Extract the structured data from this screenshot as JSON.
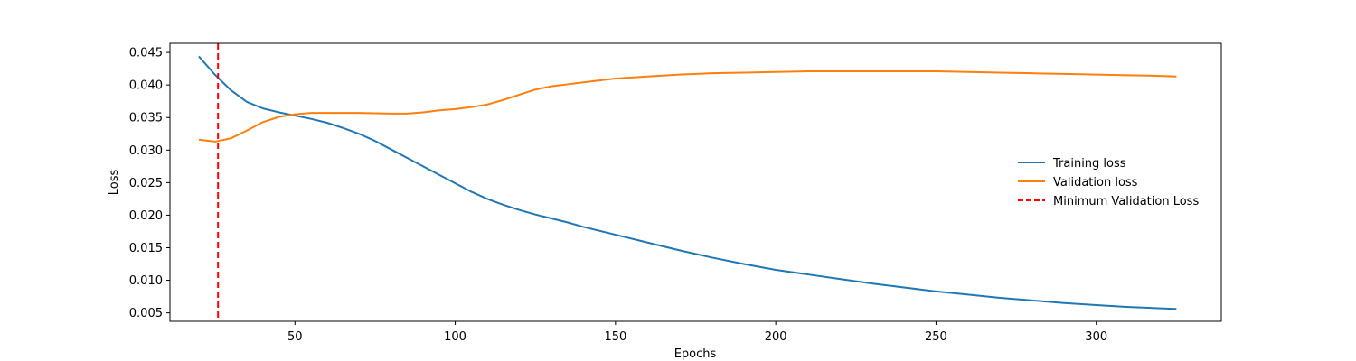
{
  "chart_data": {
    "type": "line",
    "title": "",
    "xlabel": "Epochs",
    "ylabel": "Loss",
    "xlim": [
      11,
      339
    ],
    "ylim": [
      0.0037,
      0.0464
    ],
    "xticks": [
      50,
      100,
      150,
      200,
      250,
      300
    ],
    "yticks": [
      0.005,
      0.01,
      0.015,
      0.02,
      0.025,
      0.03,
      0.035,
      0.04,
      0.045
    ],
    "ytick_labels": [
      "0.005",
      "0.010",
      "0.015",
      "0.020",
      "0.025",
      "0.030",
      "0.035",
      "0.040",
      "0.045"
    ],
    "grid": false,
    "legend": "center-right",
    "series": [
      {
        "name": "Training loss",
        "color": "#1f77b4",
        "x": [
          20,
          25,
          30,
          35,
          40,
          45,
          50,
          55,
          60,
          65,
          70,
          75,
          80,
          85,
          90,
          95,
          100,
          105,
          110,
          115,
          120,
          125,
          130,
          135,
          140,
          150,
          160,
          170,
          180,
          190,
          200,
          210,
          220,
          230,
          240,
          250,
          260,
          270,
          280,
          290,
          300,
          310,
          320,
          325
        ],
        "y": [
          0.0444,
          0.0416,
          0.0392,
          0.0374,
          0.0364,
          0.0358,
          0.0353,
          0.0348,
          0.0342,
          0.0334,
          0.0325,
          0.0314,
          0.0301,
          0.0288,
          0.0275,
          0.0262,
          0.0249,
          0.0236,
          0.0225,
          0.0216,
          0.0208,
          0.0201,
          0.0195,
          0.0189,
          0.0182,
          0.017,
          0.0158,
          0.0146,
          0.0135,
          0.0125,
          0.0116,
          0.0109,
          0.0102,
          0.0095,
          0.0089,
          0.0083,
          0.0078,
          0.0073,
          0.0069,
          0.0065,
          0.0062,
          0.0059,
          0.0057,
          0.0056
        ]
      },
      {
        "name": "Validation loss",
        "color": "#ff7f0e",
        "x": [
          20,
          25,
          30,
          35,
          40,
          45,
          50,
          55,
          60,
          70,
          80,
          85,
          90,
          95,
          100,
          105,
          110,
          115,
          120,
          125,
          130,
          135,
          140,
          150,
          160,
          170,
          180,
          190,
          200,
          210,
          220,
          230,
          240,
          250,
          260,
          270,
          280,
          290,
          300,
          310,
          320,
          325
        ],
        "y": [
          0.0316,
          0.0313,
          0.0318,
          0.033,
          0.0343,
          0.0351,
          0.0355,
          0.0357,
          0.0357,
          0.0357,
          0.0356,
          0.0356,
          0.0358,
          0.0361,
          0.0363,
          0.0366,
          0.037,
          0.0377,
          0.0385,
          0.0393,
          0.0398,
          0.0401,
          0.0404,
          0.041,
          0.0413,
          0.0416,
          0.0418,
          0.0419,
          0.042,
          0.0421,
          0.0421,
          0.0421,
          0.0421,
          0.0421,
          0.042,
          0.0419,
          0.0418,
          0.0417,
          0.0416,
          0.0415,
          0.0414,
          0.0413
        ]
      },
      {
        "name": "Minimum Validation Loss",
        "color": "#ff0000",
        "style": "dashed",
        "vertical_x": 26
      }
    ]
  }
}
